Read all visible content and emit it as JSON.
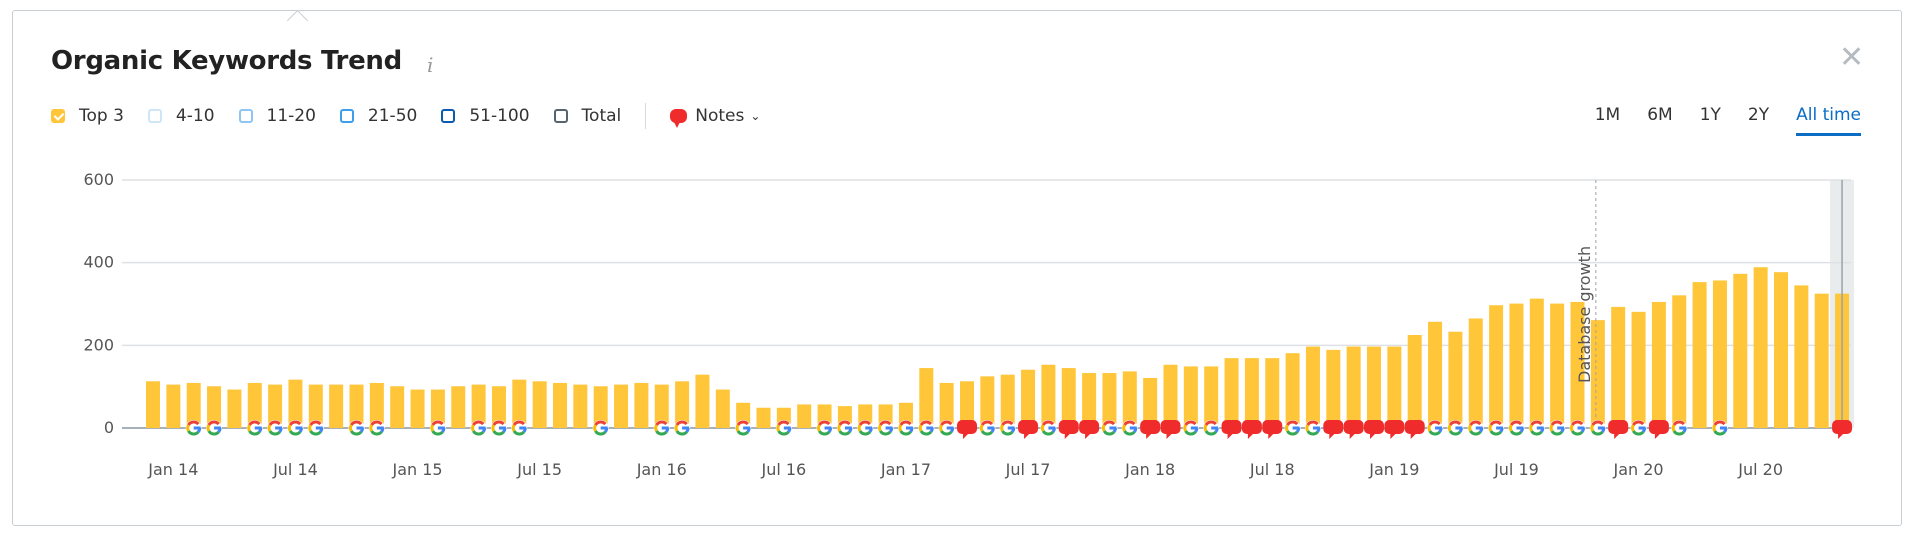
{
  "header": {
    "title": "Organic Keywords Trend",
    "info_icon": "i",
    "close_icon": "close-icon"
  },
  "legend": [
    {
      "label": "Top 3",
      "color": "#ffc63a",
      "checked": true
    },
    {
      "label": "4-10",
      "color": "#cfe5f8",
      "checked": false
    },
    {
      "label": "11-20",
      "color": "#8fc5f1",
      "checked": false
    },
    {
      "label": "21-50",
      "color": "#3b9ff0",
      "checked": false
    },
    {
      "label": "51-100",
      "color": "#0a5cb0",
      "checked": false
    },
    {
      "label": "Total",
      "color": "#56656f",
      "checked": false
    }
  ],
  "notes": {
    "label": "Notes",
    "color": "#ef2b2b"
  },
  "ranges": [
    {
      "label": "1M",
      "active": false
    },
    {
      "label": "6M",
      "active": false
    },
    {
      "label": "1Y",
      "active": false
    },
    {
      "label": "2Y",
      "active": false
    },
    {
      "label": "All time",
      "active": true
    }
  ],
  "chart_data": {
    "type": "bar",
    "title": "Organic Keywords Trend",
    "series": [
      {
        "name": "Top 3",
        "color": "#ffc63a",
        "values": [
          113,
          105,
          109,
          101,
          93,
          109,
          105,
          117,
          105,
          105,
          105,
          109,
          101,
          93,
          93,
          101,
          105,
          101,
          117,
          113,
          109,
          105,
          101,
          105,
          109,
          105,
          113,
          129,
          93,
          61,
          49,
          49,
          57,
          57,
          53,
          57,
          57,
          61,
          145,
          109,
          113,
          125,
          129,
          141,
          153,
          145,
          133,
          133,
          137,
          121,
          153,
          149,
          149,
          169,
          169,
          169,
          181,
          197,
          189,
          197,
          197,
          197,
          225,
          257,
          233,
          265,
          297,
          301,
          313,
          301,
          305,
          261,
          293,
          281,
          305,
          321,
          353,
          357,
          373,
          389,
          377,
          345,
          325,
          325
        ]
      }
    ],
    "markers": "--GG-GGGG-GG--G-GGG---G--GG--G-G-GGGGGGGNGGNGNNGGNNGGNNNGGNNNNNGGGGGGGGGNGNG-G-----N",
    "marker_legend": {
      "G": "google-update",
      "N": "note"
    },
    "x_ticks": [
      {
        "label": "Jan 14",
        "index": 1
      },
      {
        "label": "Jul 14",
        "index": 7
      },
      {
        "label": "Jan 15",
        "index": 13
      },
      {
        "label": "Jul 15",
        "index": 19
      },
      {
        "label": "Jan 16",
        "index": 25
      },
      {
        "label": "Jul 16",
        "index": 31
      },
      {
        "label": "Jan 17",
        "index": 37
      },
      {
        "label": "Jul 17",
        "index": 43
      },
      {
        "label": "Jan 18",
        "index": 49
      },
      {
        "label": "Jul 18",
        "index": 55
      },
      {
        "label": "Jan 19",
        "index": 61
      },
      {
        "label": "Jul 19",
        "index": 67
      },
      {
        "label": "Jan 20",
        "index": 73
      },
      {
        "label": "Jul 20",
        "index": 79
      }
    ],
    "y_ticks": [
      "0",
      "200",
      "400",
      "600"
    ],
    "ylim": [
      0,
      600
    ],
    "grid": true,
    "annotation": {
      "label": "Database growth",
      "index": 71
    },
    "highlighted_index": 83
  }
}
